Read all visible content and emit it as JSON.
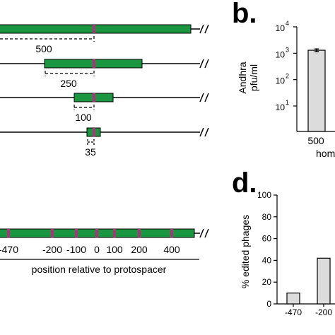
{
  "panels": {
    "b": {
      "letter": "b."
    },
    "d": {
      "letter": "d."
    }
  },
  "panel_a": {
    "fragments": [
      {
        "label": "500"
      },
      {
        "label": "250"
      },
      {
        "label": "100"
      },
      {
        "label": "35"
      }
    ]
  },
  "panel_c": {
    "tick_labels": [
      "-470",
      "-200",
      "-100",
      "0",
      "100",
      "200",
      "400"
    ],
    "axis_label": "position relative to protospacer"
  },
  "colors": {
    "homology_arm": "#1a9641",
    "protospacer_mark": "#b0307a",
    "bar_fill": "#dcdcdc"
  },
  "chart_data": [
    {
      "panel": "b",
      "type": "bar",
      "scale": "log",
      "ylabel_line1": "Andhra",
      "ylabel_line2": "pfu/ml",
      "yticks": [
        {
          "base": "10",
          "exp": "1",
          "value": 10
        },
        {
          "base": "10",
          "exp": "2",
          "value": 100
        },
        {
          "base": "10",
          "exp": "3",
          "value": 1000
        },
        {
          "base": "10",
          "exp": "4",
          "value": 10000
        }
      ],
      "categories": [
        "500"
      ],
      "values": [
        1300
      ],
      "error": [
        150
      ],
      "xlabel_partial": "hom"
    },
    {
      "panel": "d",
      "type": "bar",
      "ylabel": "% edited phages",
      "ylim": [
        0,
        100
      ],
      "yticks": [
        "0",
        "20",
        "40",
        "60",
        "80",
        "100"
      ],
      "categories": [
        "-470",
        "-200"
      ],
      "values": [
        10,
        42
      ]
    }
  ]
}
